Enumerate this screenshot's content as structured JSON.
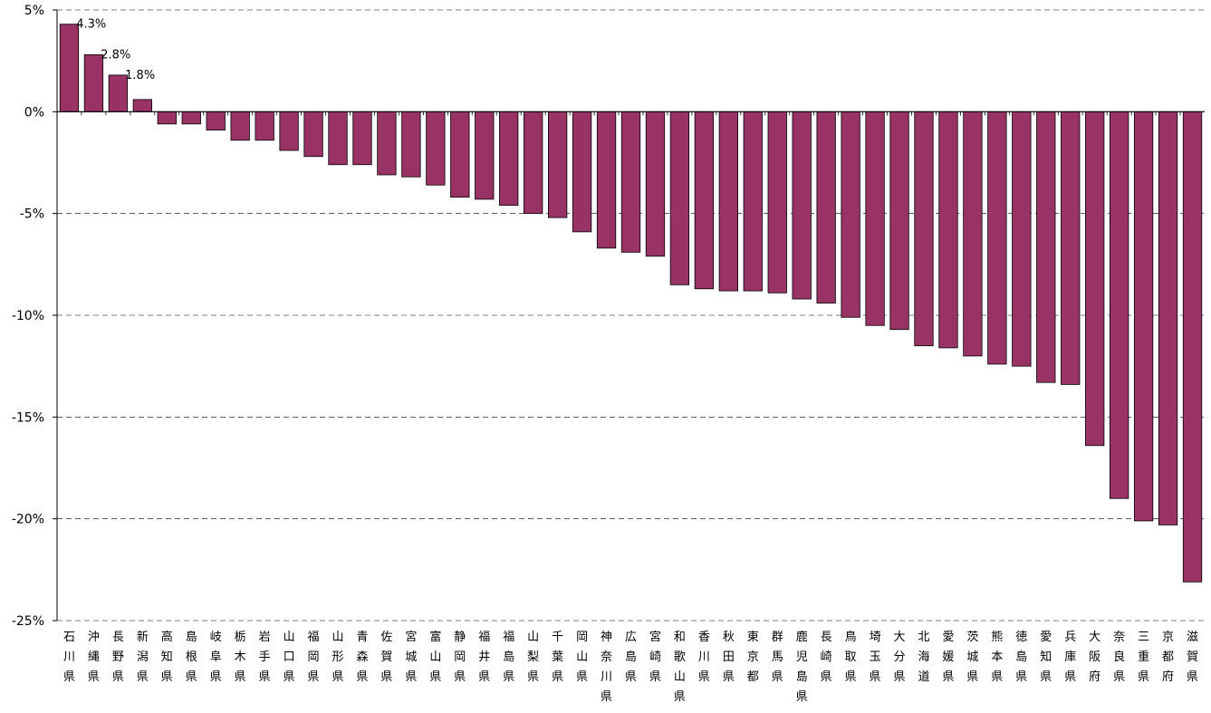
{
  "chart_data": {
    "type": "bar",
    "title": "",
    "xlabel": "",
    "ylabel": "",
    "ylim": [
      -25,
      5
    ],
    "y_unit": "%",
    "y_ticks": [
      5,
      0,
      -5,
      -10,
      -15,
      -20,
      -25
    ],
    "y_tick_labels": [
      "5%",
      "0%",
      "-5%",
      "-10%",
      "-15%",
      "-20%",
      "-25%"
    ],
    "grid": "horizontal dashed",
    "bar_color": "#993366",
    "categories": [
      "石川県",
      "沖縄県",
      "長野県",
      "新潟県",
      "高知県",
      "島根県",
      "岐阜県",
      "栃木県",
      "岩手県",
      "山口県",
      "福岡県",
      "山形県",
      "青森県",
      "佐賀県",
      "宮城県",
      "富山県",
      "静岡県",
      "福井県",
      "福島県",
      "山梨県",
      "千葉県",
      "岡山県",
      "神奈川県",
      "広島県",
      "宮崎県",
      "和歌山県",
      "香川県",
      "秋田県",
      "東京都",
      "群馬県",
      "鹿児島県",
      "長崎県",
      "鳥取県",
      "埼玉県",
      "大分県",
      "北海道",
      "愛媛県",
      "茨城県",
      "熊本県",
      "徳島県",
      "愛知県",
      "兵庫県",
      "大阪府",
      "奈良県",
      "三重県",
      "京都府",
      "滋賀県"
    ],
    "values": [
      4.3,
      2.8,
      1.8,
      0.6,
      -0.6,
      -0.6,
      -0.9,
      -1.4,
      -1.4,
      -1.9,
      -2.2,
      -2.6,
      -2.6,
      -3.1,
      -3.2,
      -3.6,
      -4.2,
      -4.3,
      -4.6,
      -5.0,
      -5.2,
      -5.9,
      -6.7,
      -6.9,
      -7.1,
      -8.5,
      -8.7,
      -8.8,
      -8.8,
      -8.9,
      -9.2,
      -9.4,
      -10.1,
      -10.5,
      -10.7,
      -11.5,
      -11.6,
      -12.0,
      -12.4,
      -12.5,
      -13.3,
      -13.4,
      -16.4,
      -19.0,
      -20.1,
      -20.3,
      -23.1
    ],
    "data_labels": [
      {
        "index": 0,
        "text": "4.3%"
      },
      {
        "index": 1,
        "text": "2.8%"
      },
      {
        "index": 2,
        "text": "1.8%"
      }
    ]
  }
}
